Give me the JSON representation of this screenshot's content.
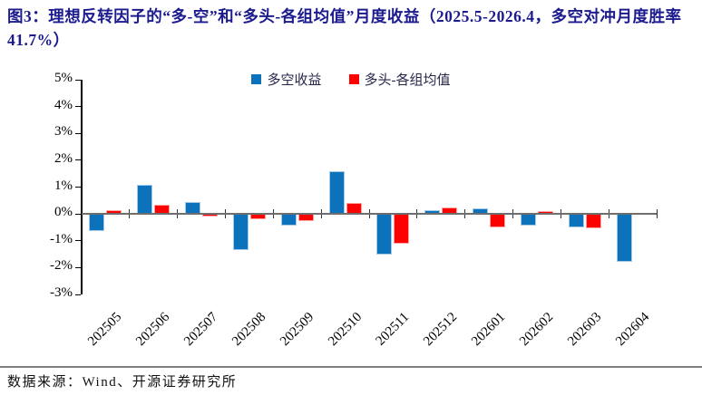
{
  "title": "图3：理想反转因子的“多-空”和“多头-各组均值”月度收益（2025.5-2026.4，多空对冲月度胜率 41.7%）",
  "footer": {
    "source": "数据来源：Wind、开源证券研究所"
  },
  "colors": {
    "title": "#1b1b8e",
    "axis": "#000000",
    "zero_line": "#6e6e6e",
    "divider": "#7f7f7f",
    "series_blue": "#0d72bc",
    "series_red": "#fe0000"
  },
  "chart_data": {
    "type": "bar",
    "categories": [
      "202505",
      "202506",
      "202507",
      "202508",
      "202509",
      "202510",
      "202511",
      "202512",
      "202601",
      "202602",
      "202603",
      "202604"
    ],
    "series": [
      {
        "key": "long-short-return",
        "name": "多空收益",
        "color": "#0d72bc",
        "border_color": "#a3c9e8",
        "values": [
          -0.65,
          1.1,
          0.45,
          -1.35,
          -0.45,
          1.6,
          -1.5,
          0.15,
          0.2,
          -0.45,
          -0.5,
          -1.8
        ]
      },
      {
        "key": "long-minus-group-mean",
        "name": "多头-各组均值",
        "color": "#fe0000",
        "border_color": "#ffa3a3",
        "values": [
          0.15,
          0.35,
          -0.1,
          -0.2,
          -0.25,
          0.4,
          -1.1,
          0.25,
          -0.5,
          0.1,
          -0.55,
          0.05
        ]
      }
    ],
    "ylim": [
      -3,
      5
    ],
    "ytick_step": 1,
    "ytick_labels": [
      "5%",
      "4%",
      "3%",
      "2%",
      "1%",
      "0%",
      "-1%",
      "-2%",
      "-3%"
    ],
    "ytick_suffix": "%",
    "legend_position": "top-center",
    "grid": false
  }
}
